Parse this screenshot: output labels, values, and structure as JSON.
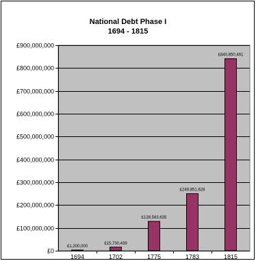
{
  "chart_data": {
    "type": "bar",
    "title_lines": [
      "National Debt Phase I",
      "1694 - 1815"
    ],
    "categories": [
      "1694",
      "1702",
      "1775",
      "1783",
      "1815"
    ],
    "values": [
      1200000,
      15730439,
      128583635,
      249851628,
      840850491
    ],
    "data_labels": [
      "£1,200,000",
      "£15,730,439",
      "£128,583,635",
      "£249,851,628",
      "£840,850,491"
    ],
    "y_ticks": [
      0,
      100000000,
      200000000,
      300000000,
      400000000,
      500000000,
      600000000,
      700000000,
      800000000,
      900000000
    ],
    "y_tick_labels": [
      "£0",
      "£100,000,000",
      "£200,000,000",
      "£300,000,000",
      "£400,000,000",
      "£500,000,000",
      "£600,000,000",
      "£700,000,000",
      "£800,000,000",
      "£900,000,000"
    ],
    "ylim": [
      0,
      900000000
    ],
    "grid": true,
    "legend": "none",
    "colors": {
      "bar": "#993366",
      "plot_background": "#c0c0c0",
      "gridline": "#000000"
    }
  }
}
